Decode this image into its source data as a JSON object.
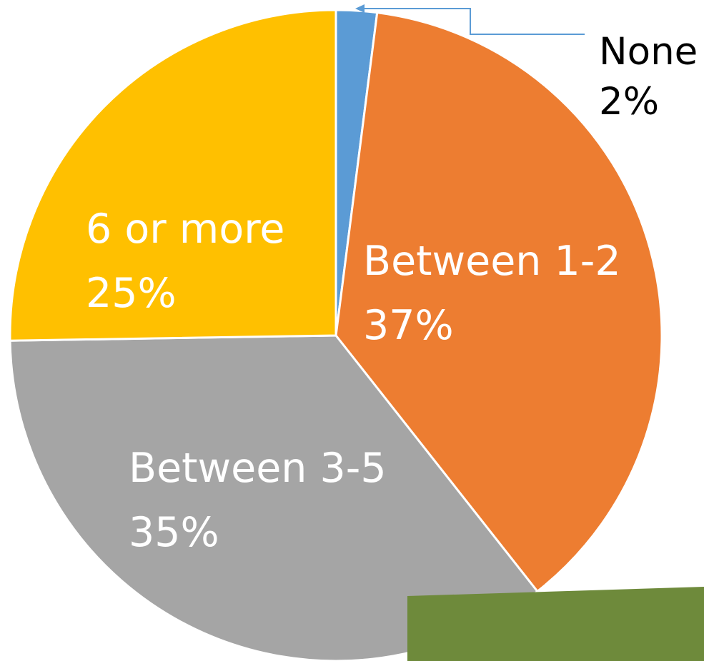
{
  "chart_data": {
    "type": "pie",
    "slices": [
      {
        "label": "None",
        "value": 2,
        "value_label": "2%",
        "color": "#5b9bd5",
        "label_placement": "outside"
      },
      {
        "label": "Between 1-2",
        "value": 37,
        "value_label": "37%",
        "color": "#ed7d31",
        "label_placement": "inside"
      },
      {
        "label": "Between 3-5",
        "value": 35,
        "value_label": "35%",
        "color": "#a5a5a5",
        "label_placement": "inside"
      },
      {
        "label": "6 or more",
        "value": 25,
        "value_label": "25%",
        "color": "#ffc000",
        "label_placement": "inside"
      }
    ],
    "start_angle": "12 o'clock",
    "direction": "clockwise",
    "legend": "none"
  },
  "decor": {
    "bottom_bar_color": "#6e8a3b"
  }
}
